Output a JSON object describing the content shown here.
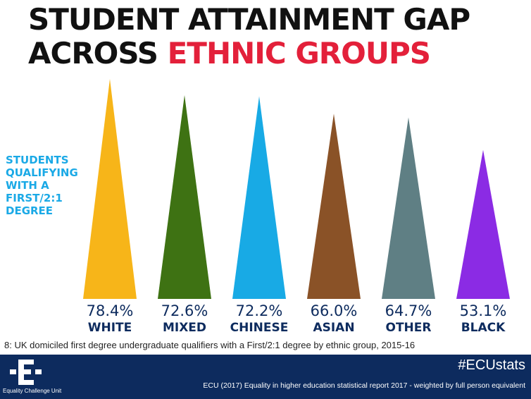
{
  "title": {
    "line1": "STUDENT ATTAINMENT GAP",
    "line2_a": "ACROSS ",
    "line2_b": "ETHNIC GROUPS"
  },
  "side_label": [
    "STUDENTS",
    "QUALIFYING",
    "WITH A",
    "FIRST/2:1",
    "DEGREE"
  ],
  "footnote": "8: UK domiciled first degree undergraduate qualifiers with a First/2:1 degree by ethnic group, 2015-16",
  "footer": {
    "logo_text": "Equality Challenge Unit",
    "hashtag": "#ECUstats",
    "source": "ECU (2017) Equality in higher education statistical report 2017 - weighted by full person equivalent"
  },
  "chart_data": {
    "type": "bar",
    "categories": [
      "WHITE",
      "MIXED",
      "CHINESE",
      "ASIAN",
      "OTHER",
      "BLACK"
    ],
    "values": [
      78.4,
      72.6,
      72.2,
      66.0,
      64.7,
      53.1
    ],
    "value_labels": [
      "78.4%",
      "72.6%",
      "72.2%",
      "66.0%",
      "64.7%",
      "53.1%"
    ],
    "colors": [
      "#f7b519",
      "#3e7213",
      "#18aae5",
      "#8a5227",
      "#5f7f84",
      "#8b2be4"
    ],
    "label_color": "#0d2b5e",
    "title": "STUDENT ATTAINMENT GAP ACROSS ETHNIC GROUPS",
    "ylabel": "STUDENTS QUALIFYING WITH A FIRST/2:1 DEGREE",
    "grid": false
  }
}
